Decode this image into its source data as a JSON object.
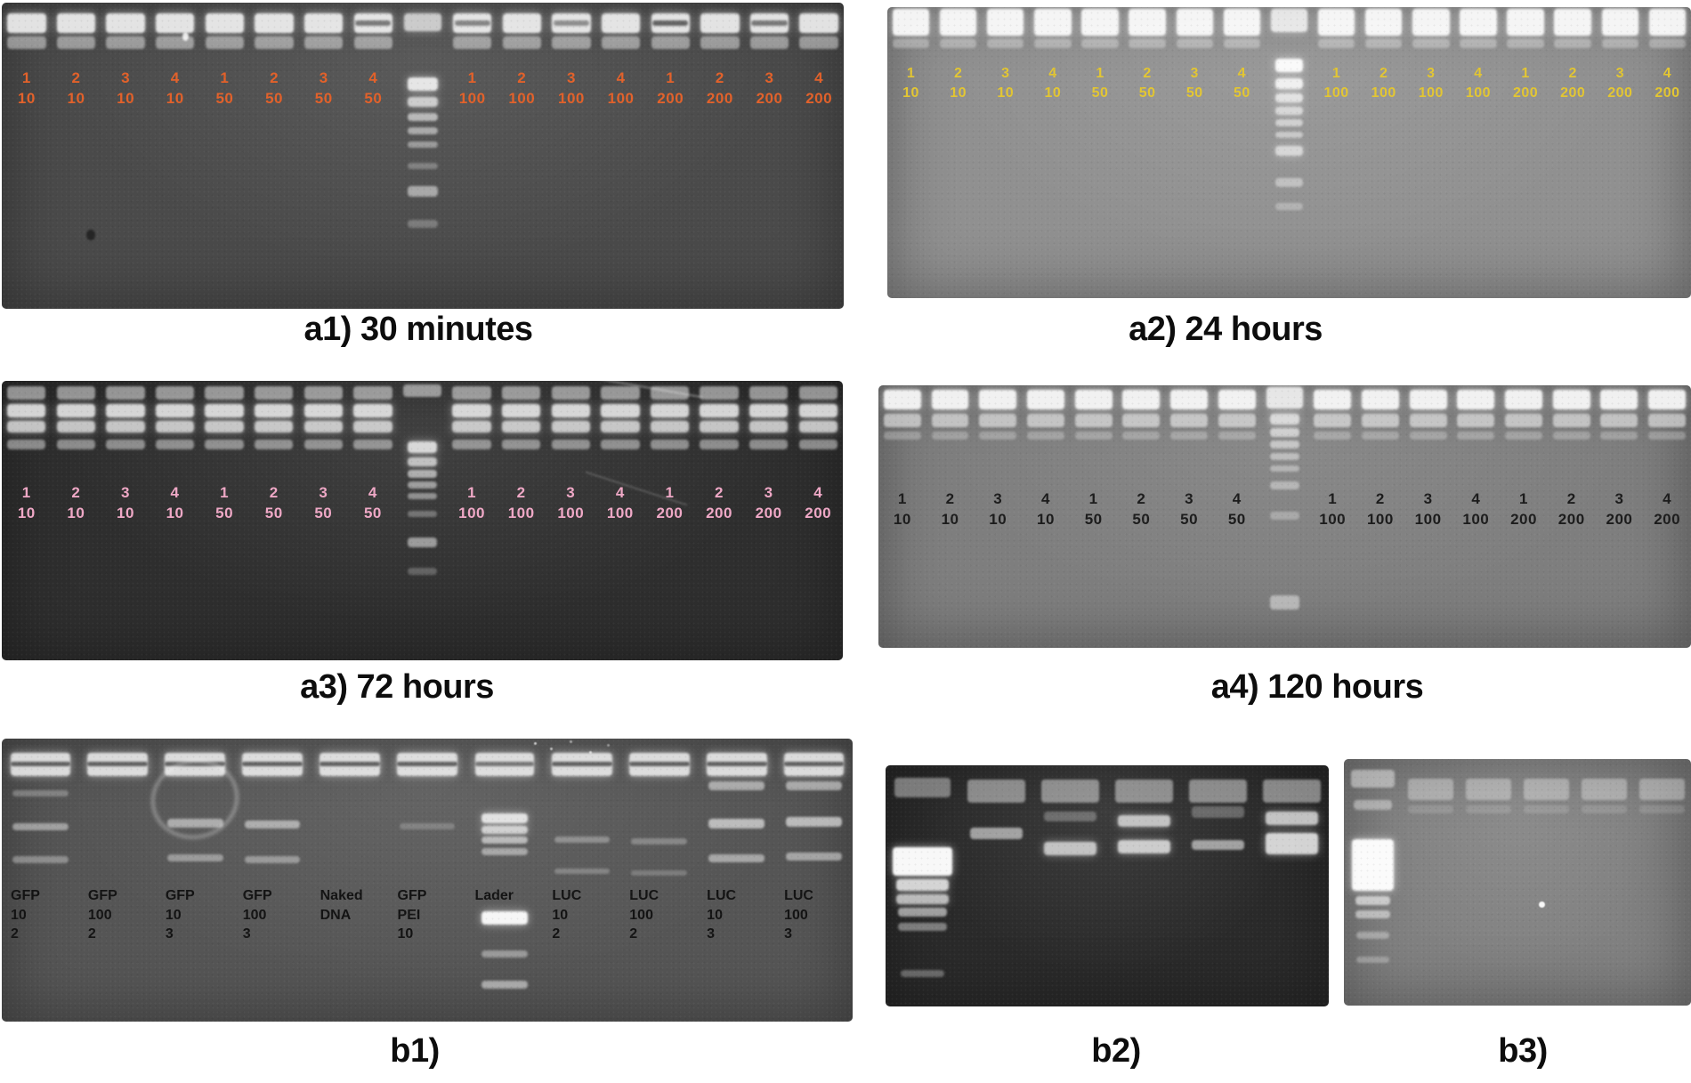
{
  "figure": {
    "captions": {
      "a1": "a1) 30 minutes",
      "a2": "a2) 24 hours",
      "a3": "a3) 72 hours",
      "a4": "a4) 120 hours",
      "b1": "b1)",
      "b2": "b2)",
      "b3": "b3)"
    },
    "panels": {
      "a1": {
        "label_color": "#e2612a",
        "gel_color": "#4a4a4a",
        "lanes": [
          [
            "1",
            "10"
          ],
          [
            "2",
            "10"
          ],
          [
            "3",
            "10"
          ],
          [
            "4",
            "10"
          ],
          [
            "1",
            "50"
          ],
          [
            "2",
            "50"
          ],
          [
            "3",
            "50"
          ],
          [
            "4",
            "50"
          ],
          [
            "1",
            "100"
          ],
          [
            "2",
            "100"
          ],
          [
            "3",
            "100"
          ],
          [
            "4",
            "100"
          ],
          [
            "1",
            "200"
          ],
          [
            "2",
            "200"
          ],
          [
            "3",
            "200"
          ],
          [
            "4",
            "200"
          ]
        ]
      },
      "a2": {
        "label_color": "#e3c632",
        "gel_color": "#909090",
        "lanes": [
          [
            "1",
            "10"
          ],
          [
            "2",
            "10"
          ],
          [
            "3",
            "10"
          ],
          [
            "4",
            "10"
          ],
          [
            "1",
            "50"
          ],
          [
            "2",
            "50"
          ],
          [
            "3",
            "50"
          ],
          [
            "4",
            "50"
          ],
          [
            "1",
            "100"
          ],
          [
            "2",
            "100"
          ],
          [
            "3",
            "100"
          ],
          [
            "4",
            "100"
          ],
          [
            "1",
            "200"
          ],
          [
            "2",
            "200"
          ],
          [
            "3",
            "200"
          ],
          [
            "4",
            "200"
          ]
        ]
      },
      "a3": {
        "label_color": "#efa8c6",
        "gel_color": "#2e2e2e",
        "lanes": [
          [
            "1",
            "10"
          ],
          [
            "2",
            "10"
          ],
          [
            "3",
            "10"
          ],
          [
            "4",
            "10"
          ],
          [
            "1",
            "50"
          ],
          [
            "2",
            "50"
          ],
          [
            "3",
            "50"
          ],
          [
            "4",
            "50"
          ],
          [
            "1",
            "100"
          ],
          [
            "2",
            "100"
          ],
          [
            "3",
            "100"
          ],
          [
            "4",
            "100"
          ],
          [
            "1",
            "200"
          ],
          [
            "2",
            "200"
          ],
          [
            "3",
            "200"
          ],
          [
            "4",
            "200"
          ]
        ]
      },
      "a4": {
        "label_color": "#1c1c1c",
        "gel_color": "#7e7e7e",
        "lanes": [
          [
            "1",
            "10"
          ],
          [
            "2",
            "10"
          ],
          [
            "3",
            "10"
          ],
          [
            "4",
            "10"
          ],
          [
            "1",
            "50"
          ],
          [
            "2",
            "50"
          ],
          [
            "3",
            "50"
          ],
          [
            "4",
            "50"
          ],
          [
            "1",
            "100"
          ],
          [
            "2",
            "100"
          ],
          [
            "3",
            "100"
          ],
          [
            "4",
            "100"
          ],
          [
            "1",
            "200"
          ],
          [
            "2",
            "200"
          ],
          [
            "3",
            "200"
          ],
          [
            "4",
            "200"
          ]
        ]
      },
      "b1": {
        "label_color": "#131313",
        "gel_color": "#555555",
        "lanes": [
          [
            "GFP",
            "10",
            "2"
          ],
          [
            "GFP",
            "100",
            "2"
          ],
          [
            "GFP",
            "10",
            "3"
          ],
          [
            "GFP",
            "100",
            "3"
          ],
          [
            "Naked",
            "DNA"
          ],
          [
            "GFP",
            "PEI",
            "10"
          ],
          [
            "Lader"
          ],
          [
            "LUC",
            "10",
            "2"
          ],
          [
            "LUC",
            "100",
            "2"
          ],
          [
            "LUC",
            "10",
            "3"
          ],
          [
            "LUC",
            "100",
            "3"
          ]
        ]
      },
      "b2": {
        "label_color": "#131313",
        "gel_color": "#2a2a2a",
        "lanes": []
      },
      "b3": {
        "label_color": "#131313",
        "gel_color": "#818181",
        "lanes": []
      }
    }
  }
}
